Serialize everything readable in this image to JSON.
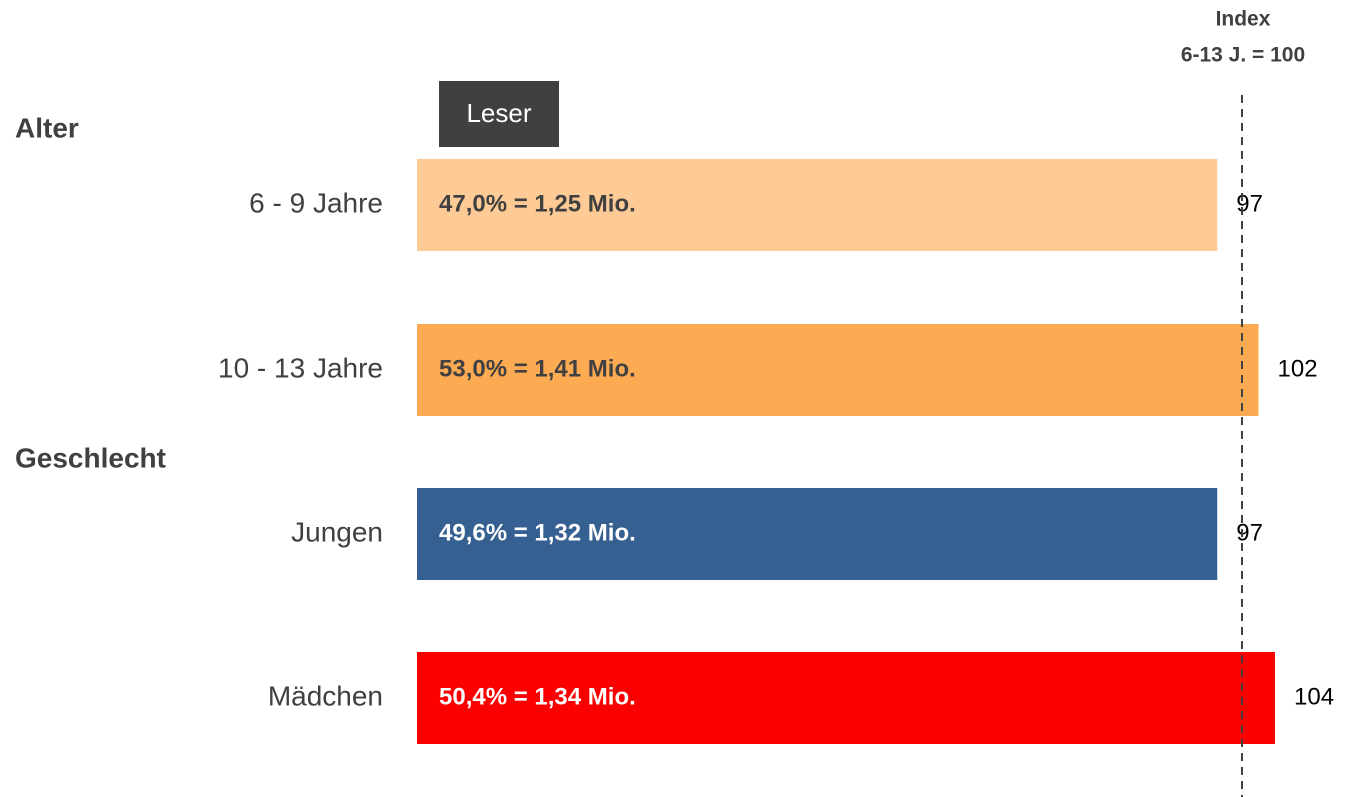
{
  "chart_data": {
    "type": "bar",
    "orientation": "horizontal",
    "header": [
      "Index",
      "6-13 J. = 100"
    ],
    "legend": "Leser",
    "group_labels": [
      "Alter",
      "Geschlecht"
    ],
    "categories": [
      "6 - 9 Jahre",
      "10 - 13 Jahre",
      "Jungen",
      "Mädchen"
    ],
    "values": [
      97,
      102,
      97,
      104
    ],
    "bar_labels": [
      "47,0% = 1,25 Mio.",
      "53,0% = 1,41 Mio.",
      "49,6% = 1,32 Mio.",
      "50,4% = 1,34 Mio."
    ],
    "colors": [
      "#fecb96",
      "#fdab52",
      "#356091",
      "#fb0000"
    ],
    "label_colors": [
      "#404040",
      "#404040",
      "#ffffff",
      "#ffffff"
    ],
    "reference": 100,
    "xlim": [
      0,
      110
    ]
  }
}
